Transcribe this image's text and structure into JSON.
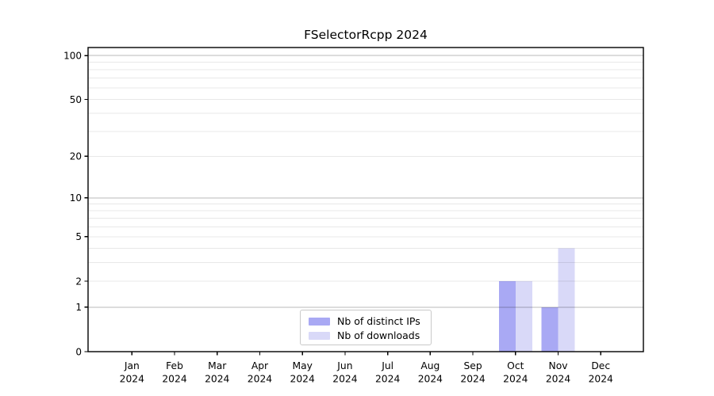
{
  "chart_data": {
    "type": "bar",
    "title": "FSelectorRcpp 2024",
    "categories": [
      "Jan",
      "Feb",
      "Mar",
      "Apr",
      "May",
      "Jun",
      "Jul",
      "Aug",
      "Sep",
      "Oct",
      "Nov",
      "Dec"
    ],
    "year": "2024",
    "series": [
      {
        "name": "Nb of distinct IPs",
        "color": "#a9a9f4",
        "values": [
          0,
          0,
          0,
          0,
          0,
          0,
          0,
          0,
          0,
          2,
          1,
          0
        ]
      },
      {
        "name": "Nb of downloads",
        "color": "#d9d9f8",
        "values": [
          0,
          0,
          0,
          0,
          0,
          0,
          0,
          0,
          0,
          2,
          4,
          0
        ]
      }
    ],
    "y_axis": {
      "scale": "log1p",
      "labeled_ticks": [
        0,
        1,
        2,
        5,
        10,
        20,
        50,
        100
      ],
      "major_gridlines": [
        1,
        10,
        100
      ],
      "minor_gridlines": [
        2,
        3,
        4,
        5,
        6,
        7,
        8,
        9,
        20,
        30,
        40,
        50,
        60,
        70,
        80,
        90
      ],
      "ylim": [
        0,
        113.5
      ]
    },
    "x_axis": {
      "label_line2": "2024"
    },
    "legend_position": "lower center",
    "grid": true,
    "style": {
      "background": "#ffffff",
      "axis_color": "#000000",
      "grid_major_color": "rgba(0,0,0,0.28)",
      "grid_minor_color": "rgba(0,0,0,0.09)",
      "tick_label_size": "12px",
      "x_label_size": "12.3px"
    }
  }
}
